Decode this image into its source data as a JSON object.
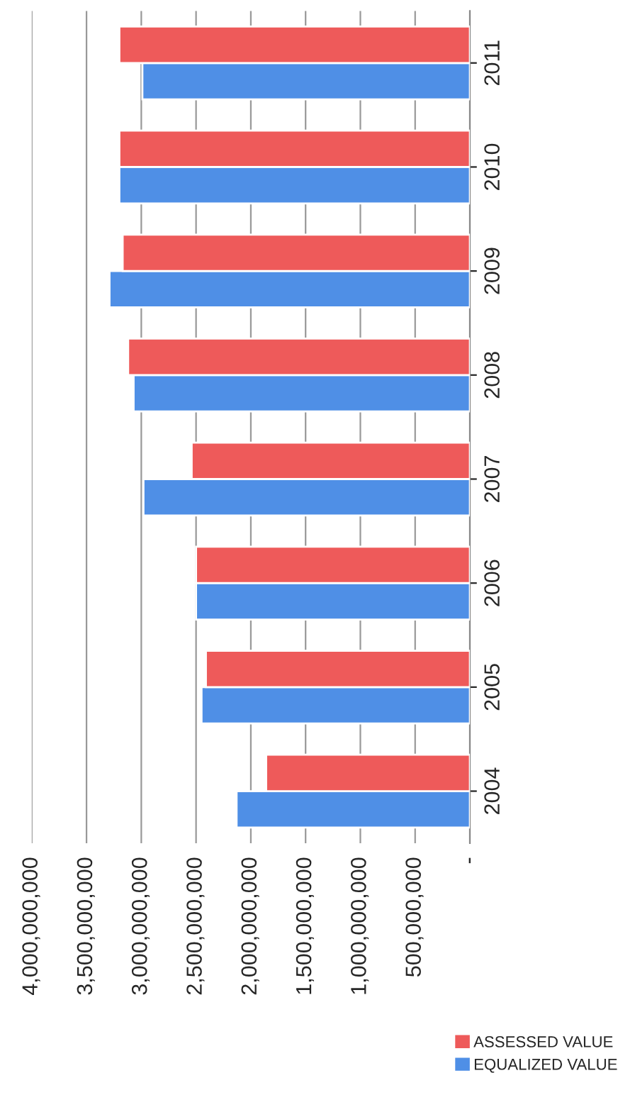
{
  "chart_data": {
    "type": "bar",
    "orientation": "horizontal",
    "categories": [
      "2011",
      "2010",
      "2009",
      "2008",
      "2007",
      "2006",
      "2005",
      "2004"
    ],
    "series": [
      {
        "name": "EQUALIZED VALUE",
        "color": "#4f8fe6",
        "values": [
          2990000000,
          3200000000,
          3290000000,
          3070000000,
          2980000000,
          2500000000,
          2450000000,
          2130000000
        ]
      },
      {
        "name": "ASSESSED VALUE",
        "color": "#ee5a5a",
        "values": [
          3200000000,
          3200000000,
          3170000000,
          3120000000,
          2540000000,
          2500000000,
          2410000000,
          1860000000
        ]
      }
    ],
    "xlim": [
      4000000000,
      0
    ],
    "xticks": [
      {
        "value": 0,
        "label": "-"
      },
      {
        "value": 500000000,
        "label": "500,000,000"
      },
      {
        "value": 1000000000,
        "label": "1,000,000,000"
      },
      {
        "value": 1500000000,
        "label": "1,500,000,000"
      },
      {
        "value": 2000000000,
        "label": "2,000,000,000"
      },
      {
        "value": 2500000000,
        "label": "2,500,000,000"
      },
      {
        "value": 3000000000,
        "label": "3,000,000,000"
      },
      {
        "value": 3500000000,
        "label": "3,500,000,000"
      },
      {
        "value": 4000000000,
        "label": "4,000,000,000"
      }
    ],
    "grid": "x",
    "legend": "right"
  }
}
